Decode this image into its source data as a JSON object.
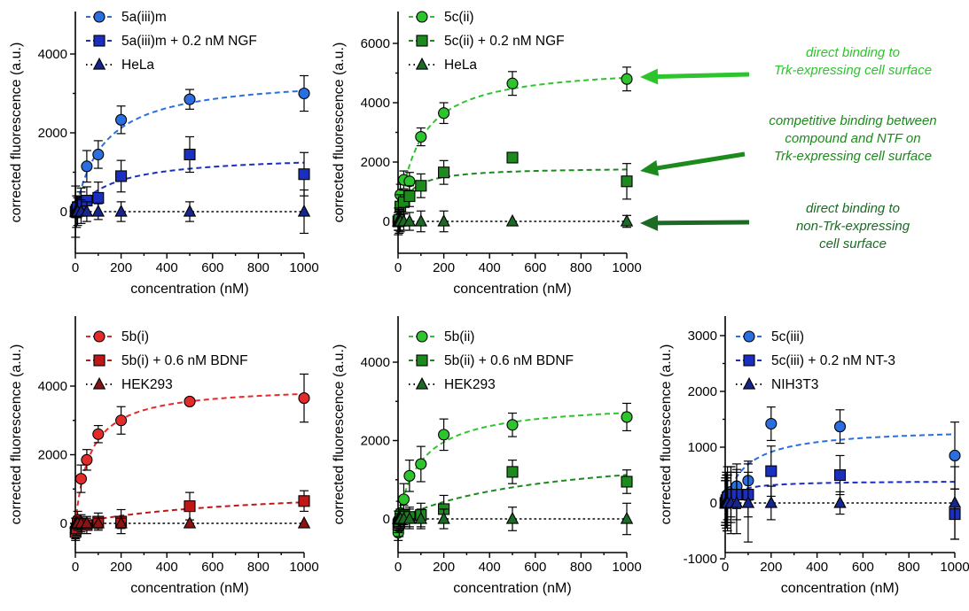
{
  "chart_data": [
    {
      "type": "scatter",
      "xlabel": "concentration (nM)",
      "ylabel": "corrected fluorescence (a.u.)",
      "xlim": [
        0,
        1000
      ],
      "ylim": [
        -1000,
        5000
      ],
      "xticks": [
        "0",
        "200",
        "400",
        "600",
        "800",
        "1000"
      ],
      "yticks": [
        "0",
        "2000",
        "4000"
      ],
      "series": [
        {
          "name": "5a(iii)m",
          "color": "#2a6fe0",
          "marker": "circle",
          "fit": "dashed",
          "x": [
            1,
            5,
            10,
            25,
            50,
            100,
            200,
            500,
            1000
          ],
          "y": [
            10,
            50,
            150,
            250,
            1150,
            1450,
            2330,
            2850,
            3000
          ],
          "err": [
            100,
            150,
            250,
            350,
            400,
            350,
            350,
            250,
            450
          ]
        },
        {
          "name": "5a(iii)m + 0.2 nM NGF",
          "color": "#1a2fbf",
          "marker": "square",
          "fit": "dashed",
          "x": [
            1,
            5,
            10,
            25,
            50,
            100,
            200,
            500,
            1000
          ],
          "y": [
            0,
            50,
            100,
            200,
            280,
            350,
            900,
            1450,
            950
          ],
          "err": [
            150,
            200,
            250,
            300,
            350,
            400,
            400,
            450,
            550
          ]
        },
        {
          "name": "HeLa",
          "color": "#16268f",
          "marker": "triangle",
          "fit": "dotted",
          "x": [
            1,
            5,
            10,
            25,
            50,
            100,
            200,
            500,
            1000
          ],
          "y": [
            0,
            0,
            0,
            0,
            0,
            0,
            0,
            0,
            0
          ],
          "err": [
            650,
            400,
            350,
            300,
            250,
            200,
            250,
            250,
            550
          ]
        }
      ]
    },
    {
      "type": "scatter",
      "xlabel": "concentration (nM)",
      "ylabel": "corrected fluorescence (a.u.)",
      "xlim": [
        0,
        1000
      ],
      "ylim": [
        -1000,
        7000
      ],
      "xticks": [
        "0",
        "200",
        "400",
        "600",
        "800",
        "1000"
      ],
      "yticks": [
        "0",
        "2000",
        "4000",
        "6000"
      ],
      "series": [
        {
          "name": "5c(ii)",
          "color": "#2ec42e",
          "marker": "circle",
          "fit": "dashed",
          "x": [
            1,
            5,
            10,
            25,
            50,
            100,
            200,
            500,
            1000
          ],
          "y": [
            0,
            100,
            900,
            1400,
            1350,
            2850,
            3650,
            4650,
            4800
          ],
          "err": [
            300,
            400,
            350,
            300,
            300,
            300,
            350,
            400,
            400
          ]
        },
        {
          "name": "5c(ii) + 0.2 nM NGF",
          "color": "#1d8a1d",
          "marker": "square",
          "fit": "dashed",
          "x": [
            1,
            5,
            10,
            25,
            50,
            100,
            200,
            500,
            1000
          ],
          "y": [
            0,
            50,
            500,
            650,
            850,
            1200,
            1650,
            2150,
            1350
          ],
          "err": [
            300,
            350,
            400,
            400,
            350,
            400,
            400,
            0,
            600
          ]
        },
        {
          "name": "HeLa",
          "color": "#1b6b24",
          "marker": "triangle",
          "fit": "dotted",
          "x": [
            1,
            5,
            10,
            25,
            50,
            100,
            200,
            500,
            1000
          ],
          "y": [
            0,
            0,
            0,
            0,
            0,
            0,
            0,
            0,
            0
          ],
          "err": [
            450,
            400,
            350,
            300,
            300,
            350,
            350,
            0,
            200
          ]
        }
      ],
      "annotations": [
        {
          "text": [
            "direct binding to",
            "Trk-expressing cell surface"
          ],
          "color": "#2ec42e"
        },
        {
          "text": [
            "competitive binding between",
            "compound and NTF on",
            "Trk-expressing cell surface"
          ],
          "color": "#1d8a1d"
        },
        {
          "text": [
            "direct binding to",
            "non-Trk-expressing",
            "cell surface"
          ],
          "color": "#1b6b24"
        }
      ]
    },
    {
      "type": "scatter",
      "xlabel": "concentration (nM)",
      "ylabel": "corrected fluorescence (a.u.)",
      "xlim": [
        0,
        1000
      ],
      "ylim": [
        -1000,
        6000
      ],
      "xticks": [
        "0",
        "200",
        "400",
        "600",
        "800",
        "1000"
      ],
      "yticks": [
        "0",
        "2000",
        "4000"
      ],
      "series": [
        {
          "name": "5b(i)",
          "color": "#e42b2b",
          "marker": "circle",
          "fit": "dashed",
          "x": [
            1,
            5,
            10,
            25,
            50,
            100,
            200,
            500,
            1000
          ],
          "y": [
            -300,
            -200,
            100,
            1300,
            1850,
            2600,
            3000,
            3550,
            3650
          ],
          "err": [
            200,
            200,
            250,
            400,
            300,
            250,
            400,
            0,
            700
          ]
        },
        {
          "name": "5b(i) + 0.6 nM BDNF",
          "color": "#c01818",
          "marker": "square",
          "fit": "dashed",
          "x": [
            1,
            5,
            10,
            25,
            50,
            100,
            200,
            500,
            1000
          ],
          "y": [
            -250,
            -150,
            0,
            0,
            -50,
            50,
            50,
            500,
            650
          ],
          "err": [
            200,
            200,
            200,
            250,
            250,
            250,
            350,
            400,
            300
          ]
        },
        {
          "name": "HEK293",
          "color": "#8a1414",
          "marker": "triangle",
          "fit": "dotted",
          "x": [
            1,
            5,
            10,
            25,
            50,
            100,
            200,
            500,
            1000
          ],
          "y": [
            0,
            0,
            0,
            0,
            0,
            0,
            0,
            0,
            0
          ],
          "err": [
            150,
            150,
            150,
            150,
            150,
            150,
            150,
            0,
            0
          ]
        }
      ]
    },
    {
      "type": "scatter",
      "xlabel": "concentration (nM)",
      "ylabel": "corrected fluorescence (a.u.)",
      "xlim": [
        0,
        1000
      ],
      "ylim": [
        -1000,
        5000
      ],
      "xticks": [
        "0",
        "200",
        "400",
        "600",
        "800",
        "1000"
      ],
      "yticks": [
        "0",
        "2000",
        "4000"
      ],
      "series": [
        {
          "name": "5b(ii)",
          "color": "#2ec42e",
          "marker": "circle",
          "fit": "dashed",
          "x": [
            1,
            5,
            10,
            25,
            50,
            100,
            200,
            500,
            1000
          ],
          "y": [
            -350,
            -200,
            150,
            500,
            1100,
            1400,
            2150,
            2400,
            2600
          ],
          "err": [
            200,
            250,
            300,
            400,
            400,
            450,
            400,
            300,
            350
          ]
        },
        {
          "name": "5b(ii) + 0.6 nM BDNF",
          "color": "#1d8a1d",
          "marker": "square",
          "fit": "dashed",
          "x": [
            1,
            5,
            10,
            25,
            50,
            100,
            200,
            500,
            1000
          ],
          "y": [
            -150,
            -100,
            0,
            100,
            50,
            100,
            250,
            1200,
            950
          ],
          "err": [
            200,
            200,
            250,
            250,
            250,
            300,
            350,
            300,
            300
          ]
        },
        {
          "name": "HEK293",
          "color": "#1b6b24",
          "marker": "triangle",
          "fit": "dotted",
          "x": [
            1,
            5,
            10,
            25,
            50,
            100,
            200,
            500,
            1000
          ],
          "y": [
            0,
            0,
            0,
            0,
            0,
            0,
            0,
            0,
            0
          ],
          "err": [
            200,
            200,
            200,
            200,
            250,
            250,
            250,
            300,
            400
          ]
        }
      ]
    },
    {
      "type": "scatter",
      "xlabel": "concentration (nM)",
      "ylabel": "corrected fluorescence (a.u.)",
      "xlim": [
        0,
        1000
      ],
      "ylim": [
        -1000,
        3300
      ],
      "xticks": [
        "0",
        "200",
        "400",
        "600",
        "800",
        "1000"
      ],
      "yticks": [
        "-1000",
        "0",
        "1000",
        "2000",
        "3000"
      ],
      "series": [
        {
          "name": "5c(iii)",
          "color": "#2a6fe0",
          "marker": "circle",
          "fit": "dashed",
          "x": [
            1,
            5,
            10,
            25,
            50,
            100,
            200,
            500,
            1000
          ],
          "y": [
            50,
            100,
            150,
            200,
            300,
            400,
            1420,
            1370,
            850
          ],
          "err": [
            400,
            450,
            500,
            450,
            400,
            350,
            300,
            300,
            600
          ]
        },
        {
          "name": "5c(iii) + 0.2 nM NT-3",
          "color": "#1a2fbf",
          "marker": "square",
          "fit": "dashed",
          "x": [
            1,
            5,
            10,
            25,
            50,
            100,
            200,
            500,
            1000
          ],
          "y": [
            0,
            50,
            100,
            150,
            150,
            150,
            570,
            500,
            -200
          ],
          "err": [
            400,
            450,
            400,
            500,
            450,
            400,
            450,
            350,
            450
          ]
        },
        {
          "name": "NIH3T3",
          "color": "#16268f",
          "marker": "triangle",
          "fit": "dotted",
          "x": [
            1,
            5,
            10,
            25,
            50,
            100,
            200,
            500,
            1000
          ],
          "y": [
            0,
            0,
            0,
            0,
            0,
            0,
            0,
            0,
            0
          ],
          "err": [
            400,
            450,
            500,
            550,
            550,
            700,
            300,
            200,
            650
          ]
        }
      ]
    }
  ]
}
